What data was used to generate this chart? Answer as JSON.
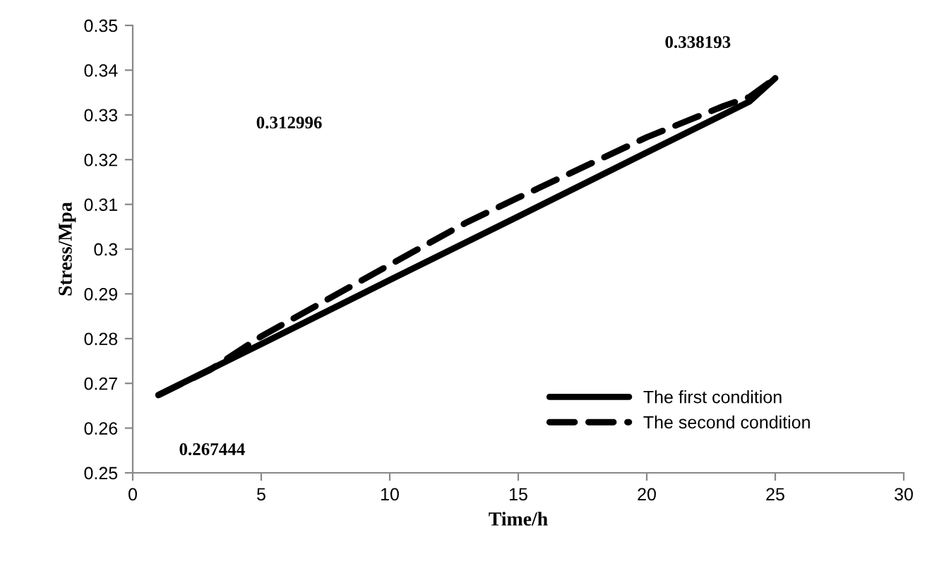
{
  "chart_data": {
    "type": "line",
    "xlabel": "Time/h",
    "ylabel": "Stress/Mpa",
    "xlim": [
      0,
      30
    ],
    "xticks": [
      0,
      5,
      10,
      15,
      20,
      25,
      30
    ],
    "ylim": [
      0.25,
      0.35
    ],
    "yticks": [
      0.25,
      0.26,
      0.27,
      0.28,
      0.29,
      0.3,
      0.31,
      0.32,
      0.33,
      0.34,
      0.35
    ],
    "grid": false,
    "legend": "bottom right",
    "marker": "none",
    "series": [
      {
        "name": "The first condition",
        "color": "#000000",
        "line_style": "solid",
        "x": [
          1,
          5,
          10,
          15,
          20,
          24,
          25
        ],
        "values": [
          0.2674,
          0.2788,
          0.2931,
          0.3073,
          0.3216,
          0.333,
          0.3382
        ]
      },
      {
        "name": "The second condition",
        "color": "#000000",
        "line_style": "dashed",
        "x": [
          1,
          3,
          5,
          10,
          13,
          15,
          20,
          23,
          24,
          25
        ],
        "values": [
          0.2674,
          0.273,
          0.2805,
          0.2965,
          0.306,
          0.3115,
          0.325,
          0.332,
          0.334,
          0.3382
        ]
      }
    ],
    "annotations": [
      "0.338193",
      "0.312996",
      "0.267444"
    ]
  }
}
